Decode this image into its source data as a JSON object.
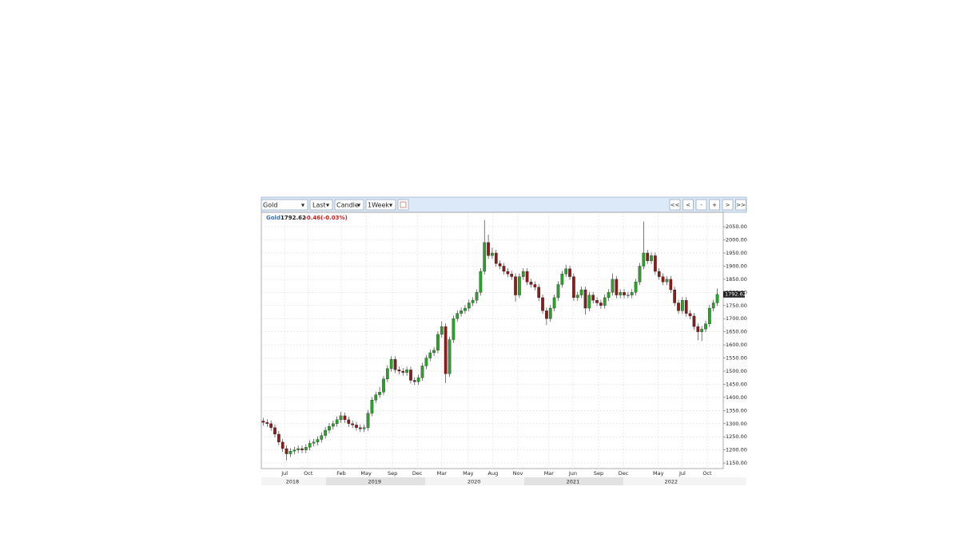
{
  "toolbar": {
    "symbol": "Gold",
    "price_field": "Last",
    "chart_style": "Candle",
    "interval": "1Week",
    "nav": [
      "<<",
      "<",
      "-",
      "+",
      ">",
      ">>"
    ]
  },
  "chart_data": {
    "type": "candlestick",
    "last": 1792.62,
    "change": "-0.46(-0.03%)",
    "series": [
      {
        "name": "Gold",
        "up_color": "#2e9e2e",
        "down_color": "#8a1c1c",
        "open": [
          1310,
          1305,
          1300,
          1285,
          1260,
          1230,
          1205,
          1185,
          1195,
          1200,
          1205,
          1200,
          1210,
          1225,
          1230,
          1240,
          1255,
          1275,
          1290,
          1300,
          1315,
          1330,
          1315,
          1300,
          1295,
          1285,
          1280,
          1285,
          1340,
          1390,
          1410,
          1420,
          1470,
          1510,
          1545,
          1505,
          1500,
          1495,
          1505,
          1465,
          1460,
          1475,
          1520,
          1550,
          1570,
          1580,
          1640,
          1670,
          1490,
          1620,
          1700,
          1720,
          1730,
          1740,
          1760,
          1770,
          1800,
          1880,
          1990,
          1940,
          1950,
          1910,
          1900,
          1880,
          1870,
          1860,
          1790,
          1860,
          1880,
          1840,
          1830,
          1820,
          1780,
          1730,
          1700,
          1740,
          1780,
          1830,
          1870,
          1890,
          1860,
          1780,
          1790,
          1810,
          1740,
          1790,
          1770,
          1760,
          1750,
          1780,
          1800,
          1850,
          1790,
          1800,
          1790,
          1790,
          1800,
          1840,
          1900,
          1950,
          1920,
          1940,
          1880,
          1860,
          1840,
          1850,
          1810,
          1760,
          1730,
          1770,
          1720,
          1710,
          1670,
          1650,
          1660,
          1680,
          1740,
          1760
        ],
        "high": [
          1322,
          1317,
          1312,
          1297,
          1272,
          1242,
          1217,
          1207,
          1212,
          1217,
          1217,
          1222,
          1237,
          1242,
          1252,
          1267,
          1287,
          1302,
          1312,
          1327,
          1345,
          1342,
          1327,
          1312,
          1307,
          1297,
          1297,
          1352,
          1402,
          1422,
          1440,
          1482,
          1522,
          1557,
          1557,
          1517,
          1512,
          1517,
          1517,
          1477,
          1487,
          1532,
          1562,
          1582,
          1592,
          1652,
          1690,
          1682,
          1632,
          1712,
          1732,
          1742,
          1752,
          1772,
          1782,
          1812,
          1892,
          2075,
          2020,
          1970,
          1962,
          1922,
          1912,
          1892,
          1882,
          1872,
          1872,
          1892,
          1892,
          1852,
          1842,
          1832,
          1792,
          1742,
          1752,
          1792,
          1842,
          1882,
          1905,
          1902,
          1872,
          1802,
          1822,
          1822,
          1802,
          1802,
          1782,
          1772,
          1792,
          1812,
          1872,
          1862,
          1812,
          1812,
          1802,
          1812,
          1852,
          1912,
          2070,
          1962,
          1952,
          1952,
          1892,
          1872,
          1862,
          1862,
          1822,
          1772,
          1782,
          1782,
          1732,
          1722,
          1682,
          1672,
          1692,
          1752,
          1772,
          1815
        ],
        "low": [
          1293,
          1288,
          1273,
          1248,
          1218,
          1193,
          1160,
          1173,
          1183,
          1188,
          1188,
          1188,
          1198,
          1213,
          1218,
          1228,
          1243,
          1263,
          1278,
          1288,
          1303,
          1303,
          1288,
          1283,
          1273,
          1268,
          1268,
          1273,
          1328,
          1378,
          1398,
          1408,
          1458,
          1498,
          1493,
          1488,
          1483,
          1483,
          1453,
          1448,
          1448,
          1463,
          1508,
          1538,
          1558,
          1568,
          1628,
          1455,
          1478,
          1608,
          1688,
          1708,
          1718,
          1728,
          1748,
          1758,
          1788,
          1868,
          1928,
          1928,
          1898,
          1888,
          1868,
          1858,
          1848,
          1765,
          1778,
          1848,
          1828,
          1818,
          1808,
          1768,
          1718,
          1676,
          1688,
          1728,
          1768,
          1818,
          1858,
          1848,
          1768,
          1768,
          1778,
          1715,
          1728,
          1758,
          1748,
          1738,
          1738,
          1768,
          1788,
          1778,
          1778,
          1778,
          1778,
          1778,
          1788,
          1828,
          1888,
          1908,
          1908,
          1868,
          1848,
          1828,
          1828,
          1798,
          1748,
          1718,
          1718,
          1708,
          1698,
          1658,
          1618,
          1615,
          1648,
          1668,
          1728,
          1748
        ],
        "close": [
          1305,
          1300,
          1285,
          1260,
          1230,
          1205,
          1185,
          1195,
          1200,
          1205,
          1200,
          1210,
          1225,
          1230,
          1240,
          1255,
          1275,
          1290,
          1300,
          1315,
          1330,
          1315,
          1300,
          1295,
          1285,
          1280,
          1285,
          1340,
          1390,
          1410,
          1420,
          1470,
          1510,
          1545,
          1505,
          1500,
          1495,
          1505,
          1465,
          1460,
          1475,
          1520,
          1550,
          1570,
          1580,
          1640,
          1670,
          1490,
          1620,
          1700,
          1720,
          1730,
          1740,
          1760,
          1770,
          1800,
          1880,
          1990,
          1940,
          1950,
          1910,
          1900,
          1880,
          1870,
          1860,
          1790,
          1860,
          1880,
          1840,
          1830,
          1820,
          1780,
          1730,
          1700,
          1740,
          1780,
          1830,
          1870,
          1890,
          1860,
          1780,
          1790,
          1810,
          1740,
          1790,
          1770,
          1760,
          1750,
          1780,
          1800,
          1850,
          1790,
          1800,
          1790,
          1790,
          1800,
          1840,
          1900,
          1950,
          1920,
          1940,
          1880,
          1860,
          1840,
          1850,
          1810,
          1760,
          1730,
          1770,
          1720,
          1710,
          1670,
          1650,
          1660,
          1680,
          1740,
          1760,
          1792.62
        ]
      }
    ],
    "xlim": [
      0,
      118
    ],
    "xticks": [
      {
        "value": 6.0,
        "label": "Jul"
      },
      {
        "value": 12.1,
        "label": "Oct"
      },
      {
        "value": 20.6,
        "label": "Feb"
      },
      {
        "value": 27.0,
        "label": "May"
      },
      {
        "value": 33.8,
        "label": "Sep"
      },
      {
        "value": 40.2,
        "label": "Dec"
      },
      {
        "value": 46.5,
        "label": "Mar"
      },
      {
        "value": 53.3,
        "label": "May"
      },
      {
        "value": 59.7,
        "label": "Aug"
      },
      {
        "value": 66.1,
        "label": "Nov"
      },
      {
        "value": 74.1,
        "label": "Mar"
      },
      {
        "value": 80.3,
        "label": "Jun"
      },
      {
        "value": 86.9,
        "label": "Sep"
      },
      {
        "value": 93.3,
        "label": "Dec"
      },
      {
        "value": 102.3,
        "label": "May"
      },
      {
        "value": 108.5,
        "label": "Jul"
      },
      {
        "value": 114.9,
        "label": "Oct"
      }
    ],
    "year_ticks": [
      {
        "value": 8.0,
        "label": "2018"
      },
      {
        "value": 29.2,
        "label": "2019"
      },
      {
        "value": 54.8,
        "label": "2020"
      },
      {
        "value": 80.3,
        "label": "2021"
      },
      {
        "value": 105.6,
        "label": "2022"
      }
    ],
    "ylim": [
      1129,
      2105
    ],
    "yticks": [
      {
        "value": 1150,
        "label": "1150.00"
      },
      {
        "value": 1200,
        "label": "1200.00"
      },
      {
        "value": 1250,
        "label": "1250.00"
      },
      {
        "value": 1300,
        "label": "1300.00"
      },
      {
        "value": 1350,
        "label": "1350.00"
      },
      {
        "value": 1400,
        "label": "1400.00"
      },
      {
        "value": 1450,
        "label": "1450.00"
      },
      {
        "value": 1500,
        "label": "1500.00"
      },
      {
        "value": 1550,
        "label": "1550.00"
      },
      {
        "value": 1600,
        "label": "1600.00"
      },
      {
        "value": 1650,
        "label": "1650.00"
      },
      {
        "value": 1700,
        "label": "1700.00"
      },
      {
        "value": 1750,
        "label": "1750.00"
      },
      {
        "value": 1800,
        "label": "1800.00"
      },
      {
        "value": 1850,
        "label": "1850.00"
      },
      {
        "value": 1900,
        "label": "1900.00"
      },
      {
        "value": 1950,
        "label": "1950.00"
      },
      {
        "value": 2000,
        "label": "2000.00"
      },
      {
        "value": 2050,
        "label": "2050.00"
      }
    ],
    "grid": true
  }
}
